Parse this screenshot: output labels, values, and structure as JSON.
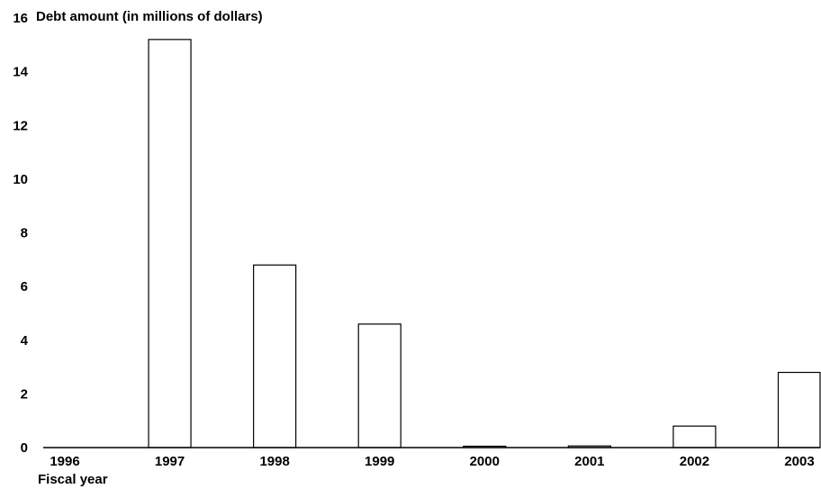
{
  "chart_data": {
    "type": "bar",
    "ylabel": "Debt amount  (in millions of dollars)",
    "xlabel": "Fiscal year",
    "ylim": [
      0,
      16
    ],
    "yticks": [
      0,
      2,
      4,
      6,
      8,
      10,
      12,
      14,
      16
    ],
    "categories": [
      "1996",
      "1997",
      "1998",
      "1999",
      "2000",
      "2001",
      "2002",
      "2003"
    ],
    "values": [
      0,
      15.2,
      6.8,
      4.6,
      0.05,
      0.06,
      0.8,
      2.8
    ],
    "grid": false,
    "bar_fill": "#ffffff",
    "bar_stroke": "#000000"
  }
}
